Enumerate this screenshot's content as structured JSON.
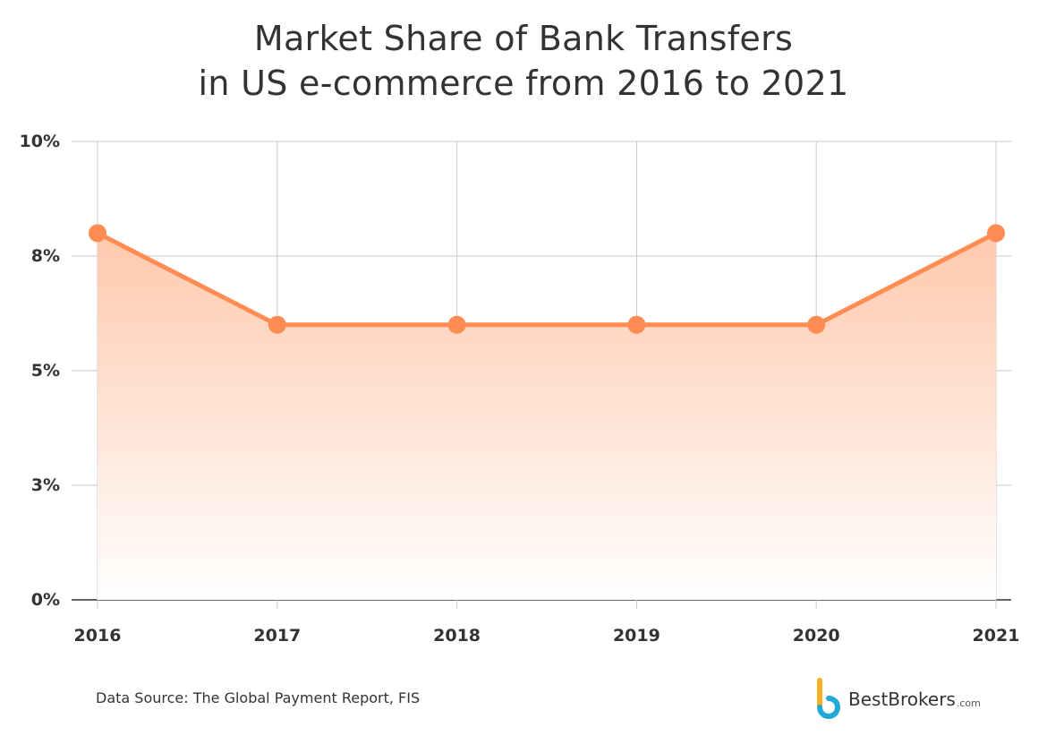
{
  "title": {
    "line1": "Market Share of Bank Transfers",
    "line2": "in US e-commerce from 2016 to 2021"
  },
  "source": "Data Source: The Global Payment Report, FIS",
  "brand": {
    "name": "BestBrokers",
    "suffix": ".com",
    "logo_colors": [
      "#f5b323",
      "#1fa9d6"
    ]
  },
  "colors": {
    "line": "#ff8c52",
    "area_top": "#ffc9ad",
    "area_bottom": "#ffffff",
    "grid": "#c8c8c8",
    "axis": "#333333"
  },
  "chart_data": {
    "type": "area",
    "title": "Market Share of Bank Transfers in US e-commerce from 2016 to 2021",
    "x": [
      "2016",
      "2017",
      "2018",
      "2019",
      "2020",
      "2021"
    ],
    "series": [
      {
        "values": [
          8.0,
          6.0,
          6.0,
          6.0,
          6.0,
          8.0
        ]
      }
    ],
    "y_ticks": [
      0,
      2.5,
      5,
      7.5,
      10
    ],
    "y_tick_labels": [
      "0%",
      "3%",
      "5%",
      "8%",
      "10%"
    ],
    "ylim": [
      0,
      10
    ],
    "grid": true,
    "markers": true
  }
}
